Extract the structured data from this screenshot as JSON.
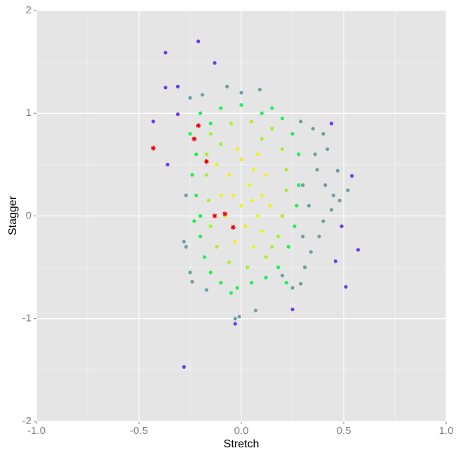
{
  "chart_data": {
    "type": "scatter",
    "xlabel": "Stretch",
    "ylabel": "Stagger",
    "xlim": [
      -1,
      1
    ],
    "ylim": [
      -2,
      2
    ],
    "xticks": [
      {
        "value": -1,
        "label": "-1.0"
      },
      -0.5,
      {
        "value": 0,
        "label": "0.0"
      },
      0.5,
      {
        "value": 1,
        "label": "1.0"
      }
    ],
    "yticks": [
      -2,
      -1,
      0,
      1,
      2
    ],
    "xminor": [
      -0.75,
      -0.25,
      0.25,
      0.75
    ],
    "yminor": [
      -1.5,
      -0.5,
      0.5,
      1.5
    ],
    "grid": true,
    "series": [
      {
        "color": "#6f9fa0",
        "marker": "circle",
        "x": [
          -0.25,
          -0.19,
          -0.07,
          0.0,
          0.09,
          0.29,
          0.35,
          0.4,
          0.42,
          0.37,
          0.41,
          0.45,
          0.48,
          0.44,
          0.4,
          0.38,
          0.34,
          0.31,
          0.29,
          0.25,
          0.2,
          -0.03,
          -0.01,
          -0.25,
          -0.27,
          -0.24,
          -0.17,
          -0.28,
          0.36,
          0.33,
          0.3,
          -0.27,
          0.07,
          0.47,
          0.52,
          0.3
        ],
        "values": [
          1.15,
          1.18,
          1.26,
          1.2,
          1.23,
          0.92,
          0.85,
          0.8,
          0.65,
          0.45,
          0.3,
          0.2,
          0.15,
          0.06,
          -0.05,
          -0.2,
          -0.35,
          -0.5,
          -0.66,
          -0.7,
          -0.58,
          -1.0,
          -0.98,
          -0.55,
          -0.3,
          -0.64,
          -0.72,
          -0.25,
          0.6,
          0.1,
          0.3,
          0.2,
          -0.92,
          0.44,
          0.25,
          -0.2
        ]
      },
      {
        "color": "#22ee55",
        "marker": "circle",
        "x": [
          -0.2,
          -0.1,
          0.0,
          0.1,
          0.2,
          0.25,
          0.28,
          -0.25,
          -0.22,
          -0.24,
          -0.22,
          -0.2,
          -0.2,
          -0.18,
          -0.15,
          -0.1,
          -0.02,
          0.05,
          0.12,
          0.18,
          0.23,
          0.26,
          0.27,
          0.28,
          -0.05,
          0.15,
          -0.15,
          0.22,
          -0.23
        ],
        "values": [
          1.0,
          1.05,
          1.08,
          1.0,
          0.95,
          0.8,
          0.6,
          0.8,
          0.6,
          0.4,
          0.2,
          0.0,
          -0.2,
          -0.4,
          -0.55,
          -0.65,
          -0.7,
          -0.65,
          -0.6,
          -0.5,
          -0.3,
          -0.1,
          0.1,
          0.3,
          -0.75,
          1.05,
          0.9,
          -0.65,
          -0.05
        ]
      },
      {
        "color": "#aaf030",
        "marker": "circle",
        "x": [
          -0.15,
          -0.05,
          0.05,
          0.15,
          0.2,
          0.22,
          0.22,
          0.2,
          0.18,
          0.12,
          0.03,
          -0.06,
          -0.12,
          -0.15,
          -0.16,
          -0.17,
          -0.17,
          -0.1,
          0.1,
          0.15
        ],
        "values": [
          0.8,
          0.9,
          0.92,
          0.85,
          0.65,
          0.45,
          0.25,
          0.0,
          -0.2,
          -0.4,
          -0.5,
          -0.45,
          -0.3,
          -0.1,
          0.15,
          0.4,
          0.6,
          0.7,
          0.75,
          -0.3
        ]
      },
      {
        "color": "#f0f020",
        "marker": "circle",
        "x": [
          0,
          0.05,
          0.04,
          0.08,
          -0.04,
          0.02,
          0.1,
          -0.06,
          0.06,
          0.0,
          -0.08,
          0.12,
          -0.1,
          0.1,
          -0.03,
          0.06,
          0.14,
          -0.12,
          0.08,
          -0.02
        ],
        "values": [
          0.1,
          0.15,
          0.3,
          0.0,
          0.2,
          -0.1,
          0.2,
          0.4,
          0.45,
          0.55,
          0.0,
          0.4,
          0.2,
          -0.15,
          -0.25,
          -0.3,
          0.1,
          0.5,
          0.6,
          0.65
        ]
      },
      {
        "color": "#6a3cf0",
        "marker": "circle",
        "x": [
          -0.37,
          -0.21,
          -0.13,
          -0.37,
          -0.43,
          -0.31,
          -0.36,
          0.44,
          0.51,
          0.49,
          0.57,
          -0.28,
          0.25,
          0.54,
          0.46,
          -0.31,
          -0.03
        ],
        "values": [
          1.59,
          1.7,
          1.49,
          1.25,
          0.92,
          0.99,
          0.5,
          0.9,
          -0.69,
          -0.1,
          -0.33,
          -1.47,
          -0.91,
          0.39,
          -0.44,
          1.26,
          -1.05
        ]
      },
      {
        "color": "#ee0000",
        "marker": "asterisk",
        "x": [
          -0.43,
          -0.21,
          -0.23,
          -0.17,
          -0.13,
          -0.08,
          -0.04
        ],
        "values": [
          0.66,
          0.88,
          0.75,
          0.53,
          0.0,
          0.02,
          -0.11
        ]
      }
    ]
  }
}
